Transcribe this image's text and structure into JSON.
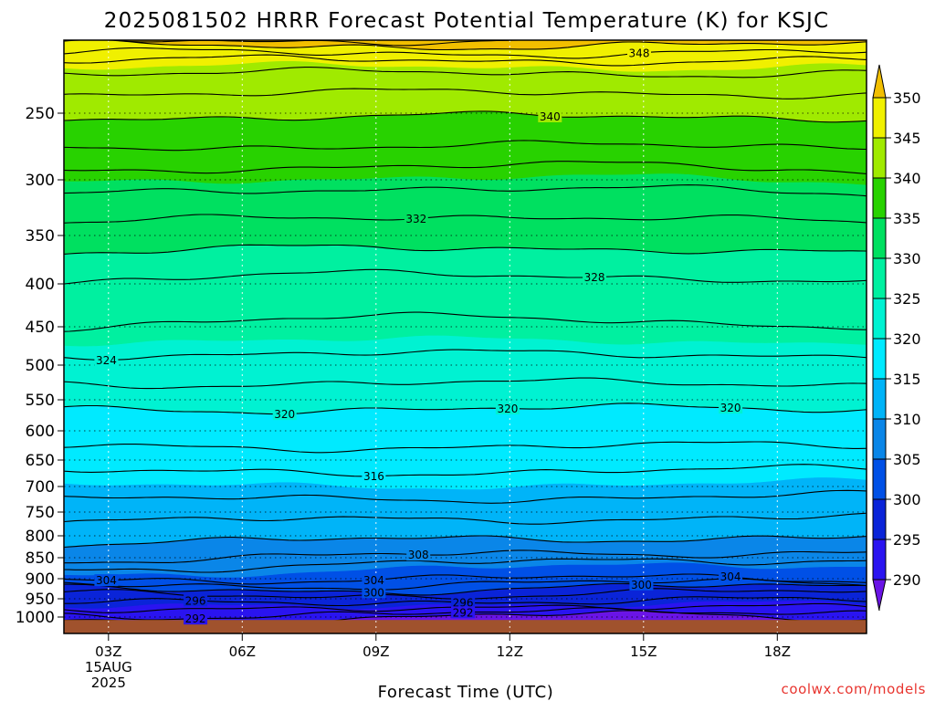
{
  "title": "2025081502 HRRR Forecast Potential Temperature (K) for KSJC",
  "credit": "coolwx.com/models",
  "chart_data": {
    "type": "contour-cross-section",
    "title": "2025081502 HRRR Forecast Potential Temperature (K) for KSJC",
    "xlabel": "Forecast Time (UTC)",
    "ylabel": "",
    "x_range_hours": [
      2,
      20
    ],
    "x_ticks": [
      {
        "hour": 3,
        "label": "03Z",
        "sub": [
          "15AUG",
          "2025"
        ]
      },
      {
        "hour": 6,
        "label": "06Z"
      },
      {
        "hour": 9,
        "label": "09Z"
      },
      {
        "hour": 12,
        "label": "12Z"
      },
      {
        "hour": 15,
        "label": "15Z"
      },
      {
        "hour": 18,
        "label": "18Z"
      }
    ],
    "y_scale": "log-pressure",
    "y_range_hPa": [
      1020,
      200
    ],
    "y_ticks": [
      250,
      300,
      350,
      400,
      450,
      500,
      550,
      600,
      650,
      700,
      750,
      800,
      850,
      900,
      950,
      1000
    ],
    "grid": true,
    "colorbar": {
      "levels": [
        290,
        295,
        300,
        305,
        310,
        315,
        320,
        325,
        330,
        335,
        340,
        345,
        350
      ],
      "colors": [
        "#6a14e6",
        "#2a14f0",
        "#0a24d8",
        "#0050e6",
        "#0a86e8",
        "#00b4f8",
        "#00eaff",
        "#00f2d2",
        "#00f0a0",
        "#00e060",
        "#28d200",
        "#a0ea00",
        "#f0f000",
        "#f2bf00"
      ]
    },
    "contour_interval_K": 2,
    "contour_labels": [
      {
        "value": 348,
        "hour": 14.9
      },
      {
        "value": 340,
        "hour": 12.9
      },
      {
        "value": 332,
        "hour": 9.9
      },
      {
        "value": 328,
        "hour": 13.9
      },
      {
        "value": 324,
        "hour": 2.95
      },
      {
        "value": 320,
        "hour": 6.95
      },
      {
        "value": 320,
        "hour": 11.95
      },
      {
        "value": 320,
        "hour": 16.95
      },
      {
        "value": 316,
        "hour": 8.95
      },
      {
        "value": 308,
        "hour": 9.95
      },
      {
        "value": 304,
        "hour": 2.95
      },
      {
        "value": 304,
        "hour": 8.95
      },
      {
        "value": 304,
        "hour": 16.95
      },
      {
        "value": 300,
        "hour": 8.95
      },
      {
        "value": 300,
        "hour": 14.95
      },
      {
        "value": 296,
        "hour": 4.95
      },
      {
        "value": 296,
        "hour": 10.95
      },
      {
        "value": 292,
        "hour": 4.95
      },
      {
        "value": 292,
        "hour": 10.95
      }
    ],
    "surface_pressure_hPa": 1008
  }
}
